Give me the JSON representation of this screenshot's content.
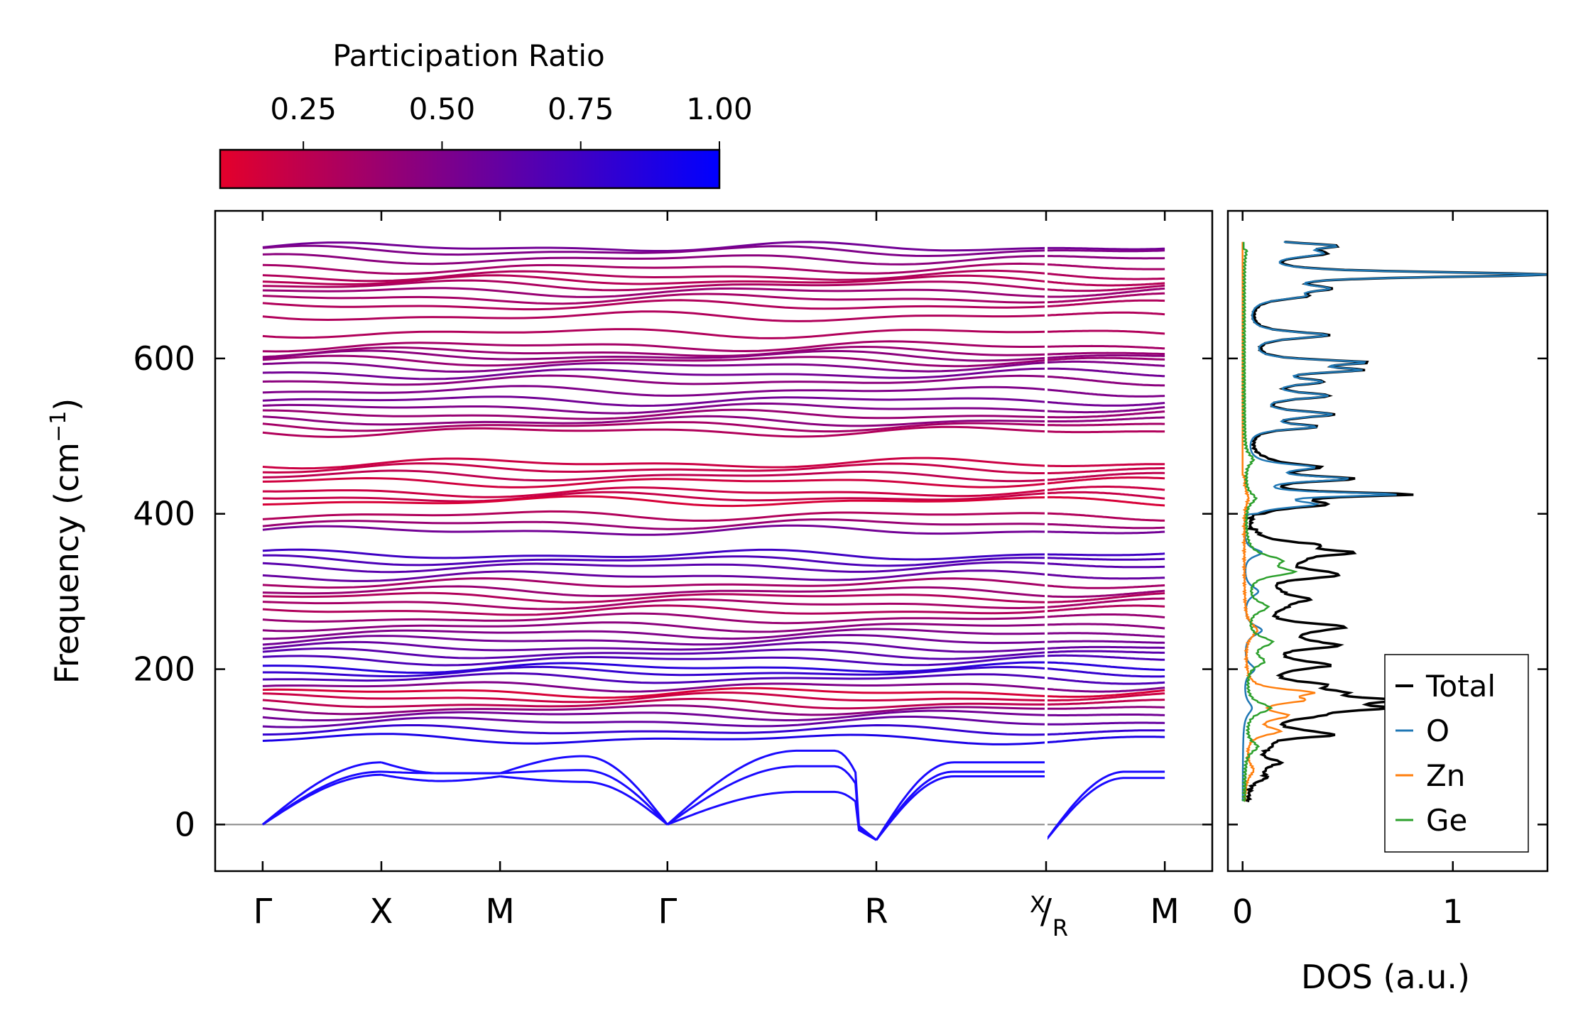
{
  "chart_data": [
    {
      "type": "line",
      "name": "phonon-band-structure",
      "ylabel_main": "Frequency (cm",
      "ylabel_sup": "−1",
      "ylabel_close": ")",
      "ylim": [
        -60,
        790
      ],
      "yticks": [
        0,
        200,
        400,
        600
      ],
      "ytick_labels": [
        "0",
        "200",
        "400",
        "600"
      ],
      "kpath": [
        {
          "label": "Γ",
          "x": 0.0
        },
        {
          "label": "X",
          "x": 1.0
        },
        {
          "label": "M",
          "x": 2.0
        },
        {
          "label": "Γ",
          "x": 3.41
        },
        {
          "label": "R",
          "x": 5.17
        },
        {
          "label_top": "X",
          "label_bottom": "R",
          "x": 6.6
        },
        {
          "label": "M",
          "x": 7.6
        }
      ],
      "break_at": 6.6,
      "xlim": [
        -0.4,
        8.0
      ],
      "zero_line": 0,
      "acoustic": {
        "gamma_x": [
          [
            0,
            80
          ],
          [
            0,
            68
          ],
          [
            0,
            64
          ]
        ],
        "x_m": [
          [
            80,
            66,
            66
          ],
          [
            68,
            66,
            66
          ],
          [
            64,
            56,
            62
          ]
        ],
        "m_gamma": [
          [
            66,
            88,
            0
          ],
          [
            66,
            70,
            0
          ],
          [
            62,
            55,
            0
          ]
        ],
        "gamma_r": [
          [
            0,
            95,
            80,
            0
          ],
          [
            0,
            80,
            60,
            0
          ],
          [
            0,
            45,
            35,
            0
          ]
        ],
        "r_dip_min": -20,
        "xr_m": [
          [
            -20,
            55,
            68
          ],
          [
            -20,
            48,
            60
          ]
        ]
      },
      "optical_frequencies": [
        743,
        738,
        728,
        716,
        706,
        700,
        694,
        686,
        677,
        668,
        654,
        633,
        616,
        608,
        603,
        597,
        590,
        580,
        571,
        558,
        546,
        536,
        527,
        519,
        513,
        506,
        465,
        458,
        449,
        441,
        428,
        421,
        416,
        398,
        387,
        378,
        347,
        340,
        332,
        320,
        310,
        300,
        293,
        284,
        275,
        265,
        255,
        246,
        237,
        228,
        220,
        212,
        202,
        196,
        188,
        178,
        170,
        163,
        155,
        148,
        141,
        132,
        121,
        110
      ],
      "participation_ratio": [
        0.55,
        0.5,
        0.45,
        0.35,
        0.3,
        0.28,
        0.32,
        0.4,
        0.35,
        0.3,
        0.3,
        0.3,
        0.35,
        0.4,
        0.45,
        0.4,
        0.5,
        0.55,
        0.45,
        0.5,
        0.55,
        0.5,
        0.4,
        0.45,
        0.35,
        0.3,
        0.2,
        0.22,
        0.25,
        0.18,
        0.2,
        0.22,
        0.15,
        0.3,
        0.4,
        0.55,
        0.75,
        0.7,
        0.65,
        0.6,
        0.35,
        0.4,
        0.3,
        0.35,
        0.3,
        0.4,
        0.45,
        0.5,
        0.55,
        0.6,
        0.65,
        0.7,
        0.85,
        0.8,
        0.7,
        0.5,
        0.15,
        0.2,
        0.25,
        0.45,
        0.55,
        0.6,
        0.8,
        0.9
      ]
    },
    {
      "type": "line",
      "name": "density-of-states",
      "xlabel": "DOS (a.u.)",
      "xlim": [
        -0.07,
        1.45
      ],
      "xticks": [
        0,
        1
      ],
      "xtick_labels": [
        "0",
        "1"
      ],
      "series": [
        {
          "name": "Total",
          "color": "#000000"
        },
        {
          "name": "O",
          "color": "#1f77b4"
        },
        {
          "name": "Zn",
          "color": "#ff7f0e"
        },
        {
          "name": "Ge",
          "color": "#2ca02c"
        }
      ],
      "o_peaks": [
        {
          "f": 708,
          "h": 1.4,
          "w": 4
        },
        {
          "f": 735,
          "h": 0.3,
          "w": 6
        },
        {
          "f": 745,
          "h": 0.35,
          "w": 4
        },
        {
          "f": 690,
          "h": 0.3,
          "w": 5
        },
        {
          "f": 680,
          "h": 0.2,
          "w": 5
        },
        {
          "f": 630,
          "h": 0.38,
          "w": 5
        },
        {
          "f": 595,
          "h": 0.5,
          "w": 4
        },
        {
          "f": 585,
          "h": 0.45,
          "w": 4
        },
        {
          "f": 570,
          "h": 0.3,
          "w": 5
        },
        {
          "f": 552,
          "h": 0.35,
          "w": 5
        },
        {
          "f": 528,
          "h": 0.38,
          "w": 5
        },
        {
          "f": 512,
          "h": 0.3,
          "w": 4
        },
        {
          "f": 460,
          "h": 0.3,
          "w": 5
        },
        {
          "f": 445,
          "h": 0.45,
          "w": 4
        },
        {
          "f": 425,
          "h": 0.68,
          "w": 3
        },
        {
          "f": 412,
          "h": 0.3,
          "w": 5
        },
        {
          "f": 350,
          "h": 0.25,
          "w": 6
        },
        {
          "f": 300,
          "h": 0.2,
          "w": 8
        },
        {
          "f": 250,
          "h": 0.25,
          "w": 8
        },
        {
          "f": 200,
          "h": 0.15,
          "w": 8
        },
        {
          "f": 150,
          "h": 0.12,
          "w": 10
        }
      ],
      "ge_peaks": [
        {
          "f": 740,
          "h": 0.01,
          "w": 10
        },
        {
          "f": 470,
          "h": 0.04,
          "w": 8
        },
        {
          "f": 420,
          "h": 0.05,
          "w": 8
        },
        {
          "f": 340,
          "h": 0.15,
          "w": 8
        },
        {
          "f": 325,
          "h": 0.2,
          "w": 6
        },
        {
          "f": 280,
          "h": 0.1,
          "w": 8
        },
        {
          "f": 235,
          "h": 0.12,
          "w": 8
        },
        {
          "f": 210,
          "h": 0.08,
          "w": 8
        },
        {
          "f": 150,
          "h": 0.12,
          "w": 8
        },
        {
          "f": 100,
          "h": 0.06,
          "w": 8
        }
      ],
      "zn_peaks": [
        {
          "f": 420,
          "h": 0.02,
          "w": 10
        },
        {
          "f": 250,
          "h": 0.06,
          "w": 10
        },
        {
          "f": 170,
          "h": 0.28,
          "w": 5
        },
        {
          "f": 160,
          "h": 0.22,
          "w": 5
        },
        {
          "f": 140,
          "h": 0.18,
          "w": 6
        },
        {
          "f": 120,
          "h": 0.15,
          "w": 6
        },
        {
          "f": 70,
          "h": 0.04,
          "w": 10
        }
      ],
      "extra_total_peaks": [
        {
          "f": 360,
          "h": 0.25,
          "w": 5
        },
        {
          "f": 350,
          "h": 0.3,
          "w": 4
        },
        {
          "f": 320,
          "h": 0.25,
          "w": 5
        },
        {
          "f": 290,
          "h": 0.2,
          "w": 5
        },
        {
          "f": 255,
          "h": 0.3,
          "w": 5
        },
        {
          "f": 230,
          "h": 0.28,
          "w": 5
        },
        {
          "f": 205,
          "h": 0.25,
          "w": 5
        },
        {
          "f": 180,
          "h": 0.25,
          "w": 5
        },
        {
          "f": 160,
          "h": 0.3,
          "w": 4
        },
        {
          "f": 150,
          "h": 0.35,
          "w": 4
        },
        {
          "f": 115,
          "h": 0.28,
          "w": 4
        },
        {
          "f": 80,
          "h": 0.12,
          "w": 5
        },
        {
          "f": 60,
          "h": 0.06,
          "w": 5
        }
      ],
      "legend_position": "lower-right"
    }
  ],
  "colorbar": {
    "title": "Participation Ratio",
    "range": [
      0.1,
      1.0
    ],
    "ticks": [
      0.25,
      0.5,
      0.75,
      1.0
    ],
    "tick_labels": [
      "0.25",
      "0.50",
      "0.75",
      "1.00"
    ],
    "color_low": "#e4002b",
    "color_high": "#0000ff"
  }
}
